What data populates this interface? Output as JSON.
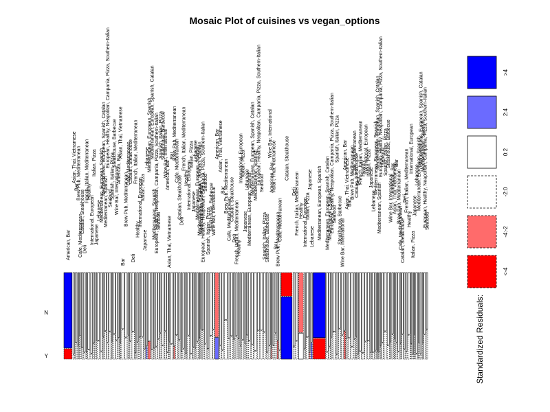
{
  "chart_data": {
    "type": "mosaic",
    "title": "Mosaic Plot of cuisines vs vegan_options",
    "row_variable": "vegan_options",
    "rows": [
      "N",
      "Y"
    ],
    "column_labels_visible": [
      "American, Bar",
      "Asian, Thai, Vietnamese",
      "Bar",
      "Brew Pub, Mediterranean",
      "Cafe, Mediterranean",
      "Catalan, Steakhouse",
      "Deli",
      "French, Italian, Mediterranean",
      "Healthy",
      "International, European",
      "Italian, Pizza",
      "Japanese",
      "Lebanese",
      "Mediterranean, European, Spanish",
      "Mediterranean, European, Spanish, Catalan",
      "Mediterranean, Spanish",
      "European, Healthy, Neapolitan, Campania, Pizza, Southern-Italian",
      "Seafood",
      "Spanish, Italian, Pizza",
      "Steakhouse, Barbecue",
      "Wine Bar, International"
    ],
    "highlighted_columns": [
      {
        "share": 0.022,
        "n_residual": ">4",
        "y_residual": "<-4",
        "y_fraction": 0.12
      },
      {
        "share": 0.01,
        "n_residual": "-4:-2",
        "y_residual": "2:4",
        "y_fraction": 0.25
      },
      {
        "share": 0.008,
        "n_residual": "0:2",
        "y_residual": "-2:0",
        "y_fraction": 0.45
      },
      {
        "share": 0.03,
        "n_residual": "<-4",
        "y_residual": ">4",
        "y_fraction": 0.72
      },
      {
        "share": 0.013,
        "n_residual": "-4:-2",
        "y_residual": "0:2",
        "y_fraction": 0.3
      },
      {
        "share": 0.034,
        "n_residual": ">4",
        "y_residual": "<-4",
        "y_fraction": 0.24
      }
    ],
    "legend": {
      "title": "Standardized Residuals:",
      "position": "right",
      "levels": [
        {
          "label": ">4",
          "fill": "#0000FF",
          "border": "solid"
        },
        {
          "label": "2:4",
          "fill": "#6B6BFF",
          "border": "solid"
        },
        {
          "label": "0:2",
          "fill": "#FFFFFF",
          "border": "solid"
        },
        {
          "label": "-2:0",
          "fill": "#FFFFFF",
          "border": "dashed"
        },
        {
          "label": "-4:-2",
          "fill": "#FF6B6B",
          "border": "dashed"
        },
        {
          "label": "<-4",
          "fill": "#FF0000",
          "border": "dashed"
        }
      ]
    }
  }
}
